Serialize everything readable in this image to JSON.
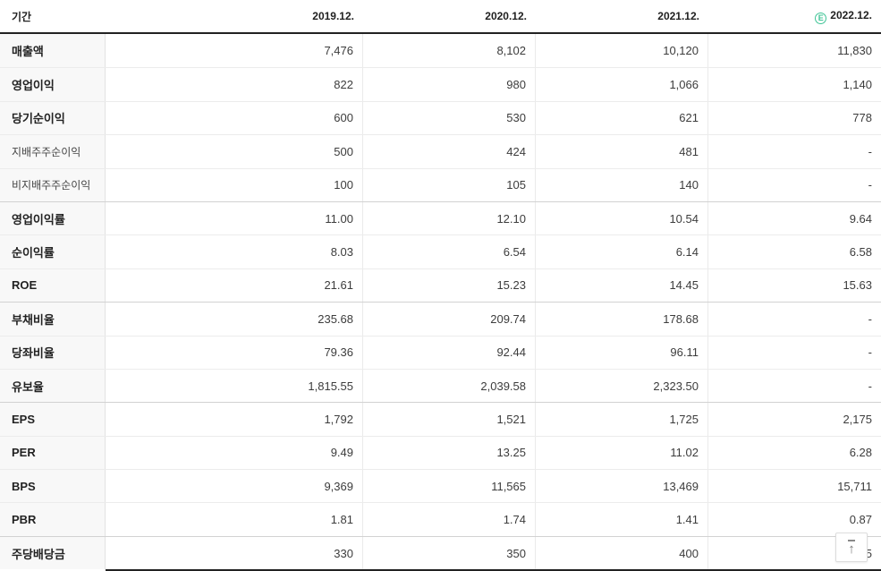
{
  "colors": {
    "estimate_badge": "#3fc496",
    "header_border": "#222222",
    "label_column_bg": "#f8f8f8",
    "row_divider": "#ececec",
    "section_divider": "#d2d2d2"
  },
  "table": {
    "period_label": "기간",
    "columns": [
      "2019.12.",
      "2020.12.",
      "2021.12.",
      "2022.12."
    ],
    "estimate_badge": "E",
    "estimate_column_index": 3,
    "rows": [
      {
        "label": "매출액",
        "sub": false,
        "section_start": false,
        "values": [
          "7,476",
          "8,102",
          "10,120",
          "11,830"
        ]
      },
      {
        "label": "영업이익",
        "sub": false,
        "section_start": false,
        "values": [
          "822",
          "980",
          "1,066",
          "1,140"
        ]
      },
      {
        "label": "당기순이익",
        "sub": false,
        "section_start": false,
        "values": [
          "600",
          "530",
          "621",
          "778"
        ]
      },
      {
        "label": "지배주주순이익",
        "sub": true,
        "section_start": false,
        "values": [
          "500",
          "424",
          "481",
          "-"
        ]
      },
      {
        "label": "비지배주주순이익",
        "sub": true,
        "section_start": false,
        "values": [
          "100",
          "105",
          "140",
          "-"
        ]
      },
      {
        "label": "영업이익률",
        "sub": false,
        "section_start": true,
        "values": [
          "11.00",
          "12.10",
          "10.54",
          "9.64"
        ]
      },
      {
        "label": "순이익률",
        "sub": false,
        "section_start": false,
        "values": [
          "8.03",
          "6.54",
          "6.14",
          "6.58"
        ]
      },
      {
        "label": "ROE",
        "sub": false,
        "section_start": false,
        "values": [
          "21.61",
          "15.23",
          "14.45",
          "15.63"
        ]
      },
      {
        "label": "부채비율",
        "sub": false,
        "section_start": true,
        "values": [
          "235.68",
          "209.74",
          "178.68",
          "-"
        ]
      },
      {
        "label": "당좌비율",
        "sub": false,
        "section_start": false,
        "values": [
          "79.36",
          "92.44",
          "96.11",
          "-"
        ]
      },
      {
        "label": "유보율",
        "sub": false,
        "section_start": false,
        "values": [
          "1,815.55",
          "2,039.58",
          "2,323.50",
          "-"
        ]
      },
      {
        "label": "EPS",
        "sub": false,
        "section_start": true,
        "values": [
          "1,792",
          "1,521",
          "1,725",
          "2,175"
        ]
      },
      {
        "label": "PER",
        "sub": false,
        "section_start": false,
        "values": [
          "9.49",
          "13.25",
          "11.02",
          "6.28"
        ]
      },
      {
        "label": "BPS",
        "sub": false,
        "section_start": false,
        "values": [
          "9,369",
          "11,565",
          "13,469",
          "15,711"
        ]
      },
      {
        "label": "PBR",
        "sub": false,
        "section_start": false,
        "values": [
          "1.81",
          "1.74",
          "1.41",
          "0.87"
        ]
      },
      {
        "label": "주당배당금",
        "sub": false,
        "section_start": true,
        "values": [
          "330",
          "350",
          "400",
          "5"
        ]
      }
    ]
  },
  "scroll_top_button": {
    "icon": "↑"
  }
}
